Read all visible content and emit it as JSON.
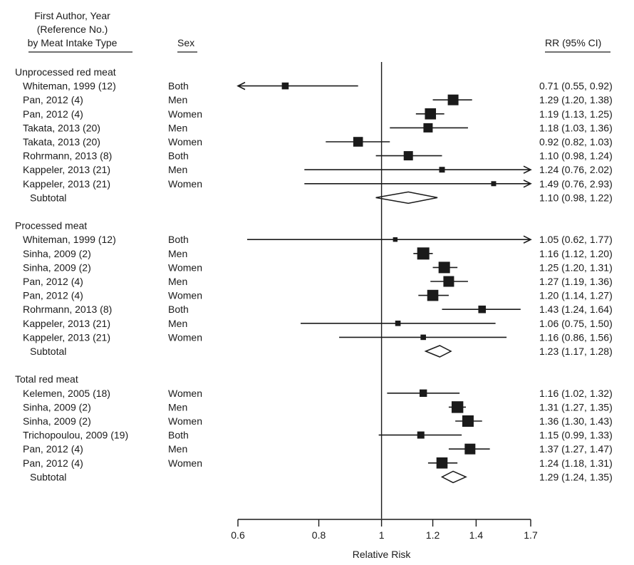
{
  "headers": {
    "study_line1": "First Author, Year",
    "study_line2": "(Reference No.)",
    "study_line3": "by Meat Intake Type",
    "sex": "Sex",
    "rr": "RR (95% CI)"
  },
  "chart_data": {
    "type": "forest",
    "title": "",
    "xlabel": "Relative Risk",
    "ylabel": "",
    "x_scale": "log",
    "xlim": [
      0.6,
      1.7
    ],
    "xticks": [
      0.6,
      0.8,
      1,
      1.2,
      1.4,
      1.7
    ],
    "reference_line": 1,
    "groups": [
      {
        "name": "Unprocessed red meat",
        "studies": [
          {
            "label": "Whiteman, 1999 (12)",
            "sex": "Both",
            "rr": 0.71,
            "lo": 0.55,
            "hi": 0.92,
            "text": "0.71 (0.55, 0.92)",
            "weight": 0.28
          },
          {
            "label": "Pan, 2012 (4)",
            "sex": "Men",
            "rr": 1.29,
            "lo": 1.2,
            "hi": 1.38,
            "text": "1.29 (1.20, 1.38)",
            "weight": 0.55
          },
          {
            "label": "Pan, 2012 (4)",
            "sex": "Women",
            "rr": 1.19,
            "lo": 1.13,
            "hi": 1.25,
            "text": "1.19 (1.13, 1.25)",
            "weight": 0.58
          },
          {
            "label": "Takata, 2013 (20)",
            "sex": "Men",
            "rr": 1.18,
            "lo": 1.03,
            "hi": 1.36,
            "text": "1.18 (1.03, 1.36)",
            "weight": 0.45
          },
          {
            "label": "Takata, 2013 (20)",
            "sex": "Women",
            "rr": 0.92,
            "lo": 0.82,
            "hi": 1.03,
            "text": "0.92 (0.82, 1.03)",
            "weight": 0.48
          },
          {
            "label": "Rohrmann, 2013 (8)",
            "sex": "Both",
            "rr": 1.1,
            "lo": 0.98,
            "hi": 1.24,
            "text": "1.10 (0.98, 1.24)",
            "weight": 0.45
          },
          {
            "label": "Kappeler, 2013 (21)",
            "sex": "Men",
            "rr": 1.24,
            "lo": 0.76,
            "hi": 2.02,
            "text": "1.24 (0.76, 2.02)",
            "weight": 0.2
          },
          {
            "label": "Kappeler, 2013 (21)",
            "sex": "Women",
            "rr": 1.49,
            "lo": 0.76,
            "hi": 2.93,
            "text": "1.49 (0.76, 2.93)",
            "weight": 0.15
          }
        ],
        "subtotal": {
          "label": "Subtotal",
          "rr": 1.1,
          "lo": 0.98,
          "hi": 1.22,
          "text": "1.10 (0.98, 1.22)"
        }
      },
      {
        "name": "Processed meat",
        "studies": [
          {
            "label": "Whiteman, 1999 (12)",
            "sex": "Both",
            "rr": 1.05,
            "lo": 0.62,
            "hi": 1.77,
            "text": "1.05 (0.62, 1.77)",
            "weight": 0.12
          },
          {
            "label": "Sinha, 2009 (2)",
            "sex": "Men",
            "rr": 1.16,
            "lo": 1.12,
            "hi": 1.2,
            "text": "1.16 (1.12, 1.20)",
            "weight": 0.65
          },
          {
            "label": "Sinha, 2009 (2)",
            "sex": "Women",
            "rr": 1.25,
            "lo": 1.2,
            "hi": 1.31,
            "text": "1.25 (1.20, 1.31)",
            "weight": 0.6
          },
          {
            "label": "Pan, 2012 (4)",
            "sex": "Men",
            "rr": 1.27,
            "lo": 1.19,
            "hi": 1.36,
            "text": "1.27 (1.19, 1.36)",
            "weight": 0.55
          },
          {
            "label": "Pan, 2012 (4)",
            "sex": "Women",
            "rr": 1.2,
            "lo": 1.14,
            "hi": 1.27,
            "text": "1.20 (1.14, 1.27)",
            "weight": 0.58
          },
          {
            "label": "Rohrmann, 2013 (8)",
            "sex": "Both",
            "rr": 1.43,
            "lo": 1.24,
            "hi": 1.64,
            "text": "1.43 (1.24, 1.64)",
            "weight": 0.33
          },
          {
            "label": "Kappeler, 2013 (21)",
            "sex": "Men",
            "rr": 1.06,
            "lo": 0.75,
            "hi": 1.5,
            "text": "1.06 (0.75, 1.50)",
            "weight": 0.18
          },
          {
            "label": "Kappeler, 2013 (21)",
            "sex": "Women",
            "rr": 1.16,
            "lo": 0.86,
            "hi": 1.56,
            "text": "1.16 (0.86, 1.56)",
            "weight": 0.18
          }
        ],
        "subtotal": {
          "label": "Subtotal",
          "rr": 1.23,
          "lo": 1.17,
          "hi": 1.28,
          "text": "1.23 (1.17, 1.28)"
        }
      },
      {
        "name": "Total red meat",
        "studies": [
          {
            "label": "Kelemen, 2005 (18)",
            "sex": "Women",
            "rr": 1.16,
            "lo": 1.02,
            "hi": 1.32,
            "text": "1.16 (1.02, 1.32)",
            "weight": 0.32
          },
          {
            "label": "Sinha, 2009 (2)",
            "sex": "Men",
            "rr": 1.31,
            "lo": 1.27,
            "hi": 1.35,
            "text": "1.31 (1.27, 1.35)",
            "weight": 0.62
          },
          {
            "label": "Sinha, 2009 (2)",
            "sex": "Women",
            "rr": 1.36,
            "lo": 1.3,
            "hi": 1.43,
            "text": "1.36 (1.30, 1.43)",
            "weight": 0.6
          },
          {
            "label": "Trichopoulou, 2009 (19)",
            "sex": "Both",
            "rr": 1.15,
            "lo": 0.99,
            "hi": 1.33,
            "text": "1.15 (0.99, 1.33)",
            "weight": 0.3
          },
          {
            "label": "Pan, 2012 (4)",
            "sex": "Men",
            "rr": 1.37,
            "lo": 1.27,
            "hi": 1.47,
            "text": "1.37 (1.27, 1.47)",
            "weight": 0.55
          },
          {
            "label": "Pan, 2012 (4)",
            "sex": "Women",
            "rr": 1.24,
            "lo": 1.18,
            "hi": 1.31,
            "text": "1.24 (1.18, 1.31)",
            "weight": 0.58
          }
        ],
        "subtotal": {
          "label": "Subtotal",
          "rr": 1.29,
          "lo": 1.24,
          "hi": 1.35,
          "text": "1.29 (1.24, 1.35)"
        }
      }
    ]
  }
}
